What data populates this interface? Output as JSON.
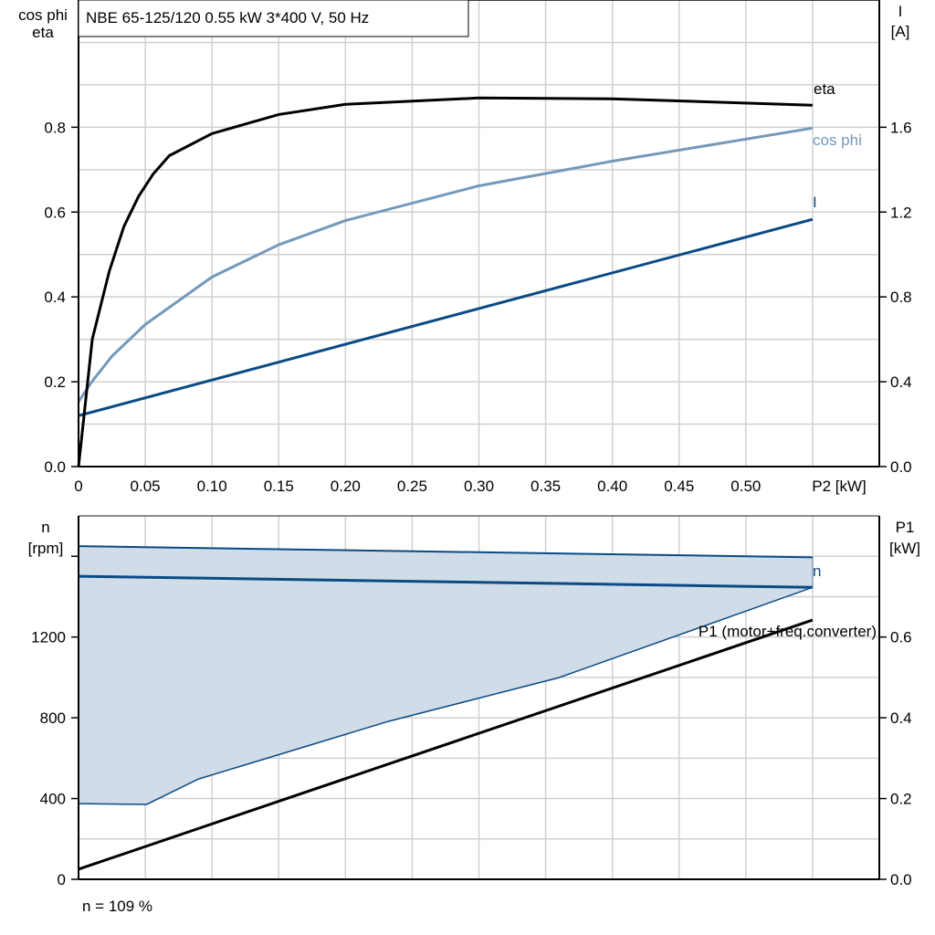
{
  "title": "NBE 65-125/120   0.55 kW   3*400 V, 50 Hz",
  "footer": "n = 109 %",
  "colors": {
    "eta": "#000000",
    "cos_phi": "#7399bb",
    "current": "#0a4a85",
    "speed": "#0a4a85",
    "band_fill": "#d0dce7",
    "p1": "#000000",
    "grid": "#d0d0d0"
  },
  "chart_data": [
    {
      "type": "line",
      "xlabel": "P2 [kW]",
      "xlim": [
        0,
        0.6
      ],
      "xticks": [
        "0",
        "0.05",
        "0.10",
        "0.15",
        "0.20",
        "0.25",
        "0.30",
        "0.35",
        "0.40",
        "0.45",
        "0.50"
      ],
      "ylabel_left": [
        "cos phi",
        "eta"
      ],
      "ylim_left": [
        0,
        1.1
      ],
      "yticks_left": [
        "0.0",
        "0.2",
        "0.4",
        "0.6",
        "0.8"
      ],
      "ylabel_right": [
        "I",
        "[A]"
      ],
      "ylim_right": [
        0,
        2.2
      ],
      "yticks_right": [
        "0.0",
        "0.4",
        "0.8",
        "1.2",
        "1.6"
      ],
      "grid": true,
      "series": [
        {
          "name": "eta",
          "axis": "left",
          "x": [
            0,
            0.0103,
            0.023,
            0.034,
            0.045,
            0.056,
            0.068,
            0.1,
            0.15,
            0.2,
            0.3,
            0.4,
            0.55
          ],
          "y": [
            0,
            0.3,
            0.46,
            0.566,
            0.637,
            0.69,
            0.733,
            0.785,
            0.83,
            0.854,
            0.869,
            0.867,
            0.852
          ]
        },
        {
          "name": "cos phi",
          "axis": "left",
          "x": [
            0,
            0.01,
            0.025,
            0.05,
            0.1,
            0.15,
            0.2,
            0.3,
            0.4,
            0.55
          ],
          "y": [
            0.153,
            0.2,
            0.26,
            0.335,
            0.447,
            0.523,
            0.58,
            0.662,
            0.72,
            0.798
          ]
        },
        {
          "name": "I",
          "axis": "right",
          "x": [
            0,
            0.55
          ],
          "y": [
            0.24,
            1.166
          ]
        }
      ]
    },
    {
      "type": "line",
      "xlim": [
        0,
        0.6
      ],
      "ylabel_left": [
        "n",
        "[rpm]"
      ],
      "ylim_left": [
        0,
        1800
      ],
      "yticks_left": [
        "0",
        "400",
        "800",
        "1200"
      ],
      "ylabel_right": [
        "P1",
        "[kW]"
      ],
      "ylim_right": [
        0,
        0.9
      ],
      "yticks_right": [
        "0.0",
        "0.2",
        "0.4",
        "0.6"
      ],
      "grid": true,
      "series": [
        {
          "name": "n",
          "axis": "left",
          "x": [
            0,
            0.55
          ],
          "y": [
            1501,
            1446
          ]
        },
        {
          "axis": "left",
          "role": "band-upper",
          "x": [
            0,
            0.55
          ],
          "y": [
            1650,
            1595
          ]
        },
        {
          "axis": "left",
          "role": "band-lower",
          "x": [
            0,
            0.051,
            0.09,
            0.232,
            0.36,
            0.55
          ],
          "y": [
            375,
            371,
            497,
            782,
            999,
            1446
          ]
        },
        {
          "name": "P1 (motor+freq.converter)",
          "axis": "right",
          "x": [
            0,
            0.55
          ],
          "y": [
            0.025,
            0.642
          ]
        }
      ]
    }
  ]
}
